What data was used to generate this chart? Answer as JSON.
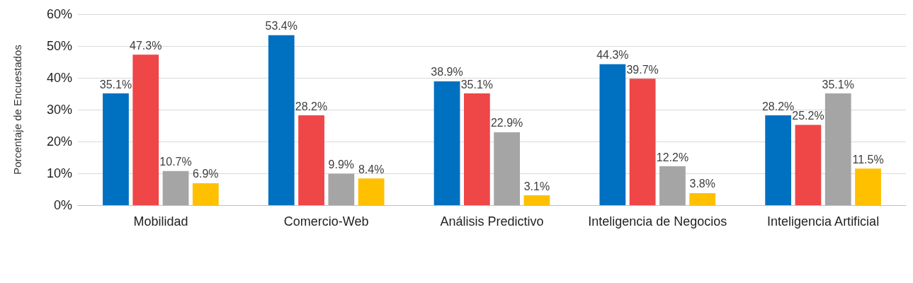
{
  "chart_data": {
    "type": "bar",
    "ylabel": "Porcentaje de Encuestados",
    "categories": [
      "Mobilidad",
      "Comercio-Web",
      "Análisis Predictivo",
      "Inteligencia de Negocios",
      "Inteligencia Artificial"
    ],
    "series": [
      {
        "color": "#0070c0",
        "values": [
          35.1,
          53.4,
          38.9,
          44.3,
          28.2
        ],
        "value_labels": [
          "35.1%",
          "53.4%",
          "38.9%",
          "44.3%",
          "28.2%"
        ]
      },
      {
        "color": "#ef4647",
        "values": [
          47.3,
          28.2,
          35.1,
          39.7,
          25.2
        ],
        "value_labels": [
          "47.3%",
          "28.2%",
          "35.1%",
          "39.7%",
          "25.2%"
        ]
      },
      {
        "color": "#a5a5a5",
        "values": [
          10.7,
          9.9,
          22.9,
          12.2,
          35.1
        ],
        "value_labels": [
          "10.7%",
          "9.9%",
          "22.9%",
          "12.2%",
          "35.1%"
        ]
      },
      {
        "color": "#ffc000",
        "values": [
          6.9,
          8.4,
          3.1,
          3.8,
          11.5
        ],
        "value_labels": [
          "6.9%",
          "8.4%",
          "3.1%",
          "3.8%",
          "11.5%"
        ]
      }
    ],
    "ylim": [
      0,
      60
    ],
    "yticks": [
      {
        "value": 0,
        "label": "0%"
      },
      {
        "value": 10,
        "label": "10%"
      },
      {
        "value": 20,
        "label": "20%"
      },
      {
        "value": 30,
        "label": "30%"
      },
      {
        "value": 40,
        "label": "40%"
      },
      {
        "value": 50,
        "label": "50%"
      },
      {
        "value": 60,
        "label": "60%"
      }
    ],
    "grid": "y"
  }
}
